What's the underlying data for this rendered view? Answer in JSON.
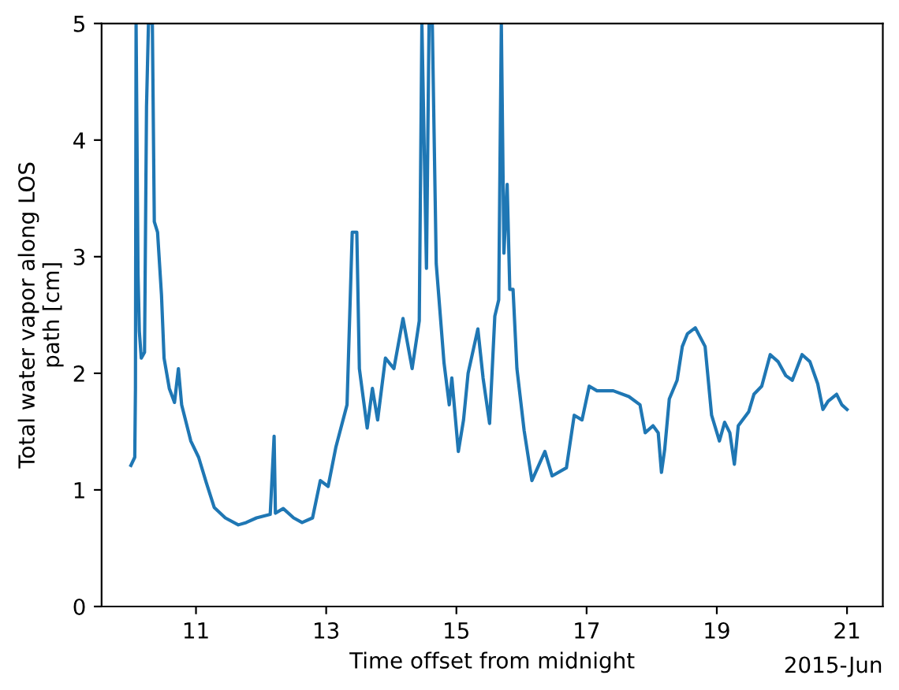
{
  "chart_data": {
    "type": "line",
    "xlabel": "Time offset from midnight",
    "ylabel": "Total water vapor along LOS\npath [cm]",
    "annotations": [
      "2015-Jun"
    ],
    "xlim": [
      "2015-06-09T13:12",
      "2015-06-21T13:12"
    ],
    "xticks": [
      {
        "value": "2015-06-11",
        "label": "11"
      },
      {
        "value": "2015-06-13",
        "label": "13"
      },
      {
        "value": "2015-06-15",
        "label": "15"
      },
      {
        "value": "2015-06-17",
        "label": "17"
      },
      {
        "value": "2015-06-19",
        "label": "19"
      },
      {
        "value": "2015-06-21",
        "label": "21"
      }
    ],
    "ylim": [
      0,
      5
    ],
    "yticks": [
      0,
      1,
      2,
      3,
      4,
      5
    ],
    "grid": false,
    "marker": "none",
    "line_style": "solid",
    "x": [
      "2015-06-10T00:00",
      "2015-06-10T01:26",
      "2015-06-10T01:41",
      "2015-06-10T01:55",
      "2015-06-10T02:38",
      "2015-06-10T03:07",
      "2015-06-10T03:50",
      "2015-06-10T05:02",
      "2015-06-10T05:46",
      "2015-06-10T06:29",
      "2015-06-10T07:55",
      "2015-06-10T08:38",
      "2015-06-10T09:50",
      "2015-06-10T11:17",
      "2015-06-10T12:14",
      "2015-06-10T14:10",
      "2015-06-10T16:05",
      "2015-06-10T17:31",
      "2015-06-10T18:43",
      "2015-06-10T22:05",
      "2015-06-11T00:58",
      "2015-06-11T03:50",
      "2015-06-11T06:43",
      "2015-06-11T10:48",
      "2015-06-11T15:36",
      "2015-06-11T18:29",
      "2015-06-11T22:19",
      "2015-06-12T03:22",
      "2015-06-12T04:48",
      "2015-06-12T05:17",
      "2015-06-12T08:10",
      "2015-06-12T12:00",
      "2015-06-12T15:07",
      "2015-06-12T18:58",
      "2015-06-12T21:50",
      "2015-06-13T00:43",
      "2015-06-13T03:36",
      "2015-06-13T07:41",
      "2015-06-13T09:36",
      "2015-06-13T11:17",
      "2015-06-13T12:14",
      "2015-06-13T15:07",
      "2015-06-13T17:02",
      "2015-06-13T18:58",
      "2015-06-13T21:50",
      "2015-06-14T00:58",
      "2015-06-14T04:19",
      "2015-06-14T07:41",
      "2015-06-14T10:19",
      "2015-06-14T11:17",
      "2015-06-14T12:58",
      "2015-06-14T13:55",
      "2015-06-14T15:07",
      "2015-06-14T16:34",
      "2015-06-14T19:26",
      "2015-06-14T21:22",
      "2015-06-14T22:19",
      "2015-06-15T00:43",
      "2015-06-15T02:38",
      "2015-06-15T04:19",
      "2015-06-15T07:55",
      "2015-06-15T09:50",
      "2015-06-15T12:14",
      "2015-06-15T14:10",
      "2015-06-15T15:36",
      "2015-06-15T16:34",
      "2015-06-15T17:31",
      "2015-06-15T18:43",
      "2015-06-15T19:41",
      "2015-06-15T20:53",
      "2015-06-15T22:19",
      "2015-06-16T00:58",
      "2015-06-16T03:50",
      "2015-06-16T08:38",
      "2015-06-16T11:17",
      "2015-06-16T16:34",
      "2015-06-16T19:26",
      "2015-06-16T22:19",
      "2015-06-17T00:58",
      "2015-06-17T03:50",
      "2015-06-17T09:50",
      "2015-06-17T15:36",
      "2015-06-17T19:41",
      "2015-06-17T21:36",
      "2015-06-18T00:29",
      "2015-06-18T02:24",
      "2015-06-18T03:36",
      "2015-06-18T04:48",
      "2015-06-18T06:29",
      "2015-06-18T09:22",
      "2015-06-18T11:17",
      "2015-06-18T13:12",
      "2015-06-18T16:05",
      "2015-06-18T19:41",
      "2015-06-18T22:05",
      "2015-06-19T00:58",
      "2015-06-19T02:53",
      "2015-06-19T04:48",
      "2015-06-19T06:29",
      "2015-06-19T07:55",
      "2015-06-19T11:46",
      "2015-06-19T13:41",
      "2015-06-19T16:34",
      "2015-06-19T19:41",
      "2015-06-19T22:34",
      "2015-06-20T01:26",
      "2015-06-20T03:50",
      "2015-06-20T07:26",
      "2015-06-20T10:19",
      "2015-06-20T13:12",
      "2015-06-20T15:07",
      "2015-06-20T17:02",
      "2015-06-20T20:10",
      "2015-06-20T22:05",
      "2015-06-21T00:00"
    ],
    "series": [
      {
        "color": "#1f77b4",
        "values": [
          1.21,
          1.28,
          1.87,
          5,
          2.85,
          2.36,
          2.13,
          2.18,
          4.29,
          5,
          5,
          3.3,
          3.21,
          2.67,
          2.13,
          1.87,
          1.75,
          2.04,
          1.73,
          1.42,
          1.28,
          1.06,
          0.85,
          0.76,
          0.7,
          0.72,
          0.76,
          0.79,
          1.46,
          0.8,
          0.84,
          0.76,
          0.72,
          0.76,
          1.08,
          1.03,
          1.37,
          1.73,
          3.21,
          3.21,
          2.04,
          1.53,
          1.87,
          1.6,
          2.13,
          2.04,
          2.47,
          2.04,
          2.45,
          5,
          2.9,
          5,
          5,
          2.94,
          2.09,
          1.73,
          1.96,
          1.33,
          1.6,
          2.0,
          2.38,
          1.96,
          1.57,
          2.49,
          2.63,
          5,
          3.03,
          3.62,
          2.72,
          2.72,
          2.04,
          1.51,
          1.08,
          1.33,
          1.12,
          1.19,
          1.64,
          1.6,
          1.89,
          1.85,
          1.85,
          1.8,
          1.73,
          1.49,
          1.55,
          1.49,
          1.15,
          1.35,
          1.78,
          1.94,
          2.23,
          2.34,
          2.39,
          2.23,
          1.64,
          1.42,
          1.58,
          1.49,
          1.22,
          1.55,
          1.67,
          1.82,
          1.89,
          2.16,
          2.1,
          1.98,
          1.94,
          2.16,
          2.1,
          1.91,
          1.69,
          1.76,
          1.82,
          1.73,
          1.69
        ]
      }
    ]
  }
}
